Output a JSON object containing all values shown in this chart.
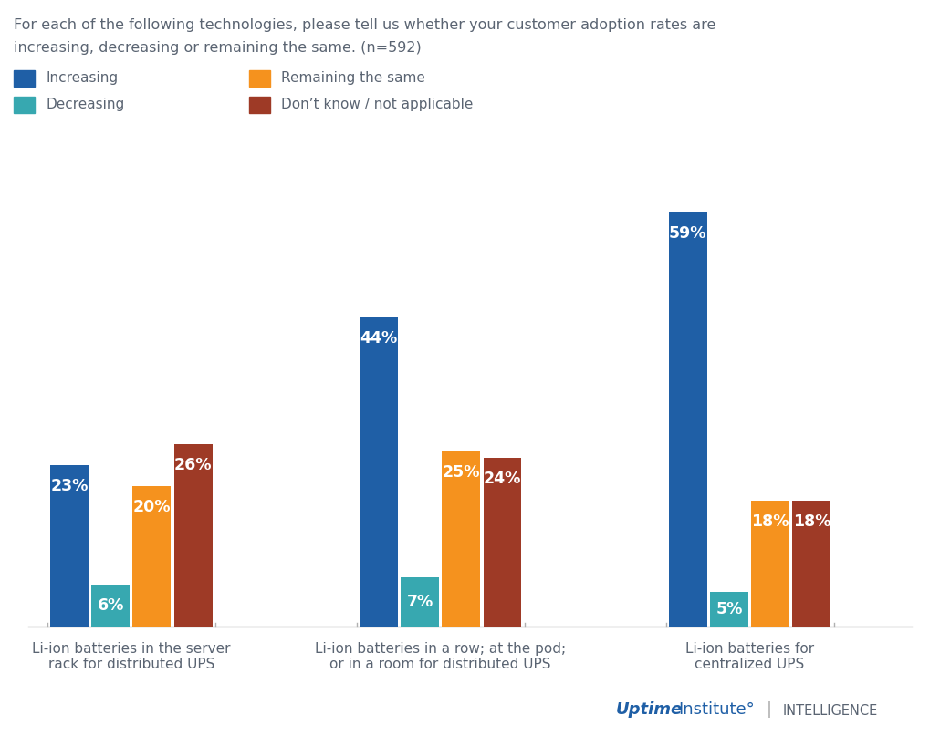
{
  "title_line1": "For each of the following technologies, please tell us whether your customer adoption rates are",
  "title_line2": "increasing, decreasing or remaining the same. (n=592)",
  "categories": [
    "Li-ion batteries in the server\nrack for distributed UPS",
    "Li-ion batteries in a row; at the pod;\nor in a room for distributed UPS",
    "Li-ion batteries for\ncentralized UPS"
  ],
  "series": {
    "Increasing": [
      23,
      44,
      59
    ],
    "Decreasing": [
      6,
      7,
      5
    ],
    "Remaining the same": [
      20,
      25,
      18
    ],
    "Don’t know / not applicable": [
      26,
      24,
      18
    ]
  },
  "colors": {
    "Increasing": "#1f5fa6",
    "Decreasing": "#37a8b0",
    "Remaining the same": "#f5921e",
    "Don’t know / not applicable": "#9e3a26"
  },
  "bar_width": 0.13,
  "ylim": [
    0,
    68
  ],
  "background_color": "#ffffff",
  "text_color": "#5a6472",
  "label_text_color": "#ffffff",
  "group_centers": [
    0.25,
    1.3,
    2.35
  ],
  "xlim": [
    -0.1,
    2.9
  ]
}
